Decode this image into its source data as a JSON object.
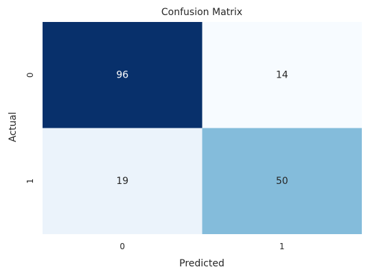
{
  "chart_data": {
    "type": "heatmap",
    "title": "Confusion Matrix",
    "xlabel": "Predicted",
    "ylabel": "Actual",
    "x_categories": [
      "0",
      "1"
    ],
    "y_categories": [
      "0",
      "1"
    ],
    "values": [
      [
        96,
        14
      ],
      [
        19,
        50
      ]
    ],
    "value_range": [
      14,
      96
    ],
    "colormap": "Blues",
    "colorbar": false,
    "grid": false
  }
}
